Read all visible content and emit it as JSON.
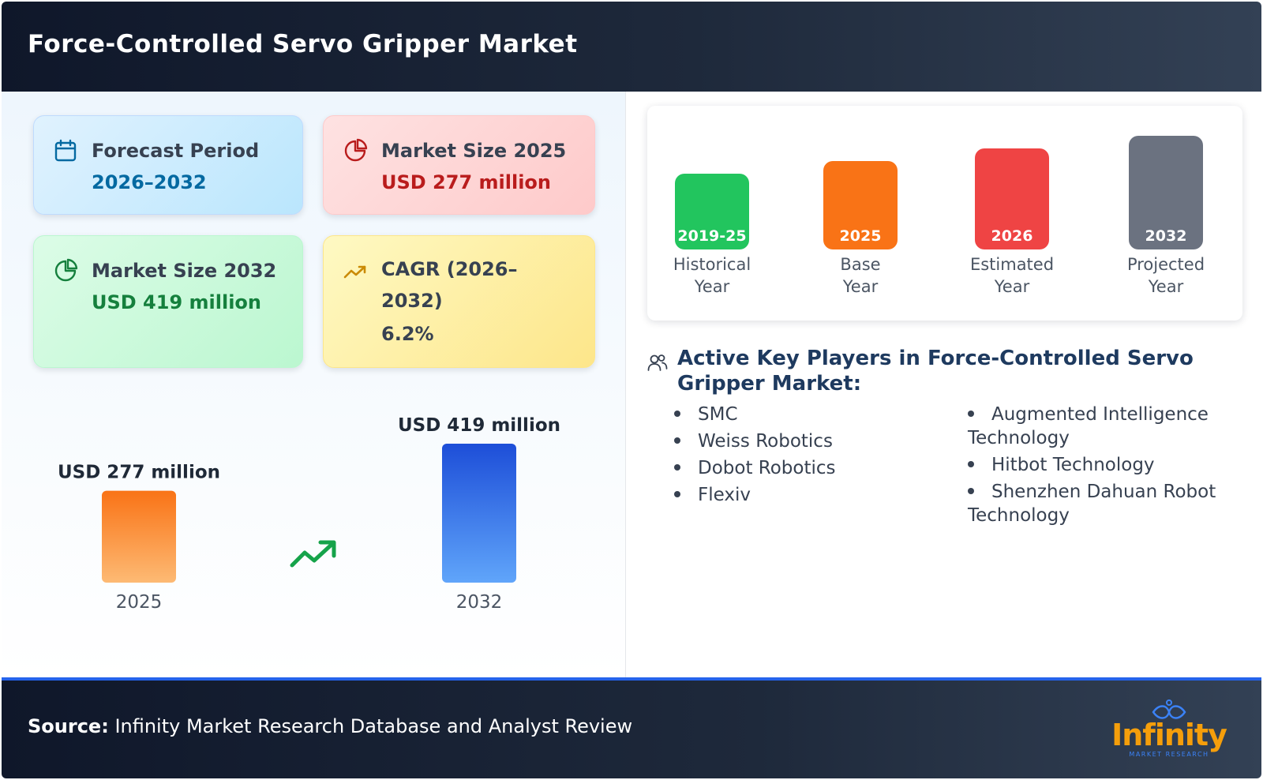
{
  "header": {
    "title": "Force-Controlled Servo Gripper Market"
  },
  "cards": {
    "forecast": {
      "label": "Forecast Period",
      "value": "2026–2032"
    },
    "ms2025": {
      "label": "Market Size 2025",
      "value": "USD 277 million"
    },
    "ms2032": {
      "label": "Market Size 2032",
      "value": "USD 419 million"
    },
    "cagr": {
      "label": "CAGR (2026–2032)",
      "value": "6.2%"
    }
  },
  "colors": {
    "bar_2025": "#f97316",
    "bar_2032": "#2563eb",
    "trend_arrow": "#16a34a",
    "historical": "#22c55e",
    "base": "#f97316",
    "estimated": "#ef4444",
    "projected": "#6b7280"
  },
  "chart_data": [
    {
      "type": "bar",
      "categories": [
        "2025",
        "2032"
      ],
      "values": [
        277,
        419
      ],
      "data_labels": [
        "USD 277 million",
        "USD 419 million"
      ]
    },
    {
      "type": "bar",
      "categories": [
        "2019-25",
        "2025",
        "2026",
        "2032"
      ],
      "captions": [
        [
          "Historical",
          "Year"
        ],
        [
          "Base",
          "Year"
        ],
        [
          "Estimated",
          "Year"
        ],
        [
          "Projected",
          "Year"
        ]
      ],
      "values": [
        1,
        2,
        3,
        4
      ]
    }
  ],
  "players": {
    "icon": "users-icon",
    "title": "Active Key Players in Force-Controlled Servo Gripper Market:",
    "column1": [
      "SMC",
      "Weiss Robotics",
      "Dobot Robotics",
      "Flexiv"
    ],
    "column2": [
      "Augmented Intelligence Technology",
      "Hitbot Technology",
      "Shenzhen Dahuan Robot Technology"
    ]
  },
  "footer": {
    "source_label": "Source:",
    "source_text": "Infinity Market Research Database and Analyst Review",
    "logo_word": "Infinity",
    "logo_sub": "MARKET RESEARCH"
  }
}
